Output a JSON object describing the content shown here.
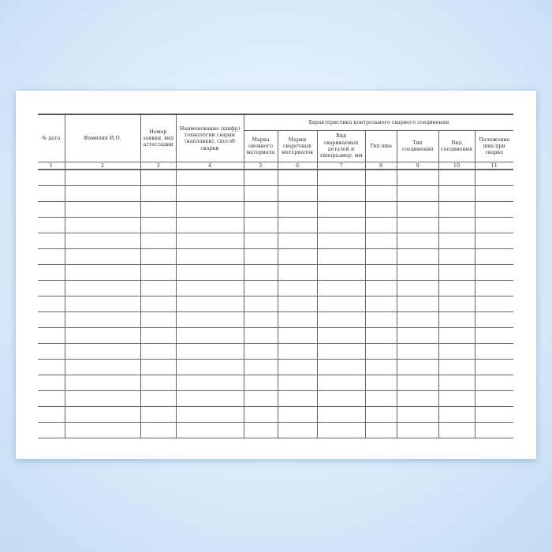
{
  "table": {
    "group_header": "Характеристика контрольного сварного соединения",
    "columns": [
      "№ дата",
      "Фамилия И.О.",
      "Номер заявки, вид аттестации",
      "Наименование (шифр) технологии сварки (наплавки), способ сварки",
      "Марка оновного материала",
      "Марки сварочных материалов",
      "Вид свариваемых деталей и типоразмер, мм",
      "Тип шва",
      "Тип соединения",
      "Вид соединения",
      "Положение шва при сварке"
    ],
    "numbers": [
      "1",
      "2",
      "3",
      "4",
      "5",
      "6",
      "7",
      "8",
      "9",
      "10",
      "11"
    ],
    "empty_rows": 17
  }
}
